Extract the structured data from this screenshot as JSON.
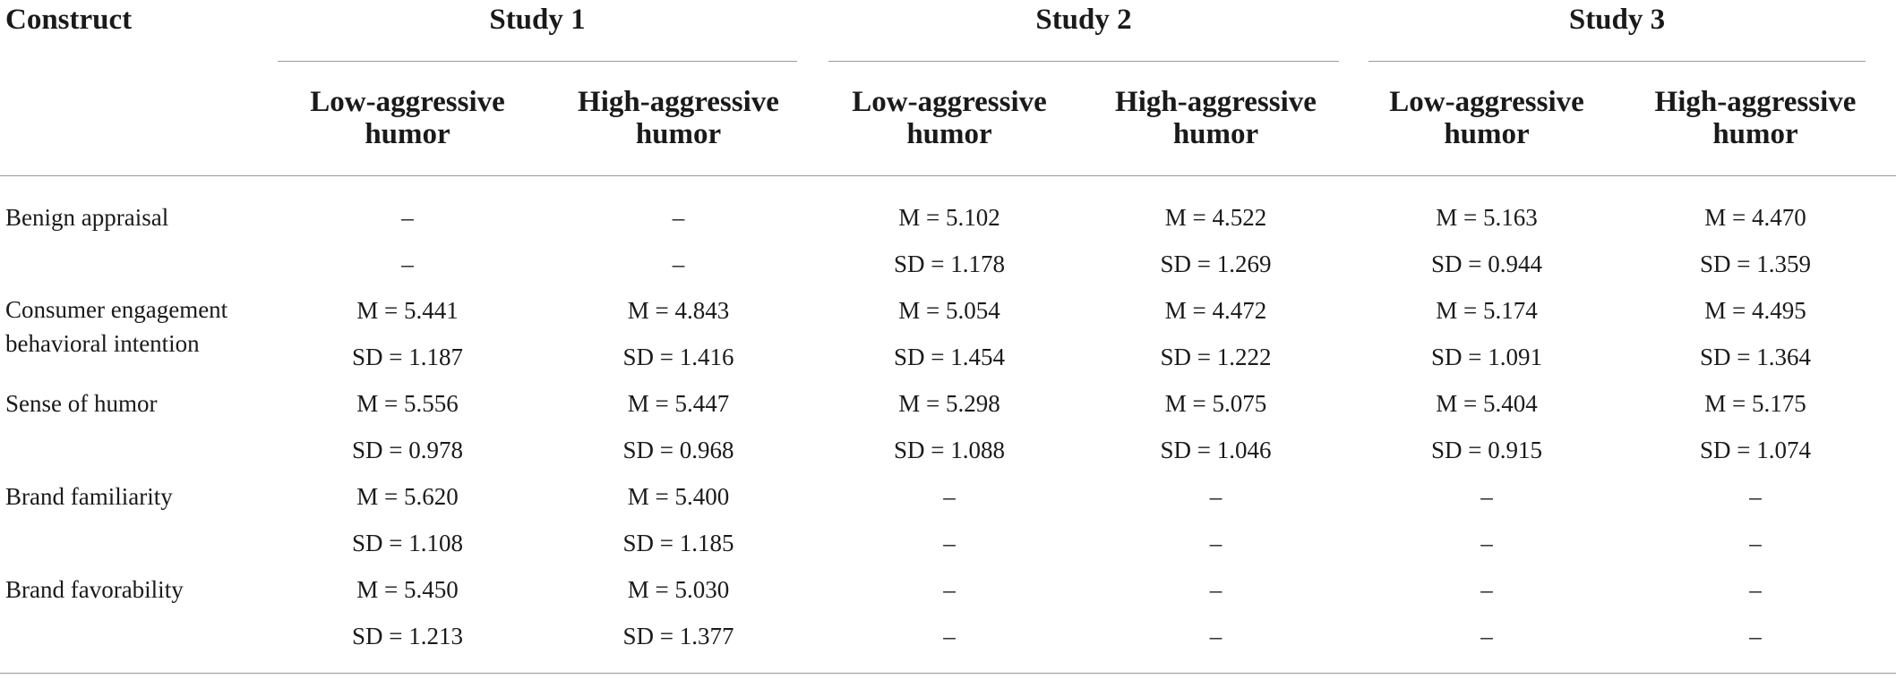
{
  "header": {
    "construct": "Construct",
    "studies": [
      "Study 1",
      "Study 2",
      "Study 3"
    ],
    "low_label": "Low-aggressive humor",
    "high_label": "High-aggressive humor"
  },
  "rows": [
    {
      "label": "Benign appraisal",
      "m": [
        "–",
        "–",
        "M = 5.102",
        "M = 4.522",
        "M = 5.163",
        "M = 4.470"
      ],
      "sd": [
        "–",
        "–",
        "SD = 1.178",
        "SD = 1.269",
        "SD = 0.944",
        "SD = 1.359"
      ]
    },
    {
      "label": "Consumer engagement behavioral intention",
      "m": [
        "M = 5.441",
        "M = 4.843",
        "M = 5.054",
        "M = 4.472",
        "M = 5.174",
        "M = 4.495"
      ],
      "sd": [
        "SD = 1.187",
        "SD = 1.416",
        "SD = 1.454",
        "SD = 1.222",
        "SD = 1.091",
        "SD = 1.364"
      ]
    },
    {
      "label": "Sense of humor",
      "m": [
        "M = 5.556",
        "M = 5.447",
        "M = 5.298",
        "M = 5.075",
        "M = 5.404",
        "M = 5.175"
      ],
      "sd": [
        "SD = 0.978",
        "SD = 0.968",
        "SD = 1.088",
        "SD = 1.046",
        "SD = 0.915",
        "SD = 1.074"
      ]
    },
    {
      "label": "Brand familiarity",
      "m": [
        "M = 5.620",
        "M = 5.400",
        "–",
        "–",
        "–",
        "–"
      ],
      "sd": [
        "SD = 1.108",
        "SD = 1.185",
        "–",
        "–",
        "–",
        "–"
      ]
    },
    {
      "label": "Brand favorability",
      "m": [
        "M = 5.450",
        "M = 5.030",
        "–",
        "–",
        "–",
        "–"
      ],
      "sd": [
        "SD = 1.213",
        "SD = 1.377",
        "–",
        "–",
        "–",
        "–"
      ]
    }
  ]
}
